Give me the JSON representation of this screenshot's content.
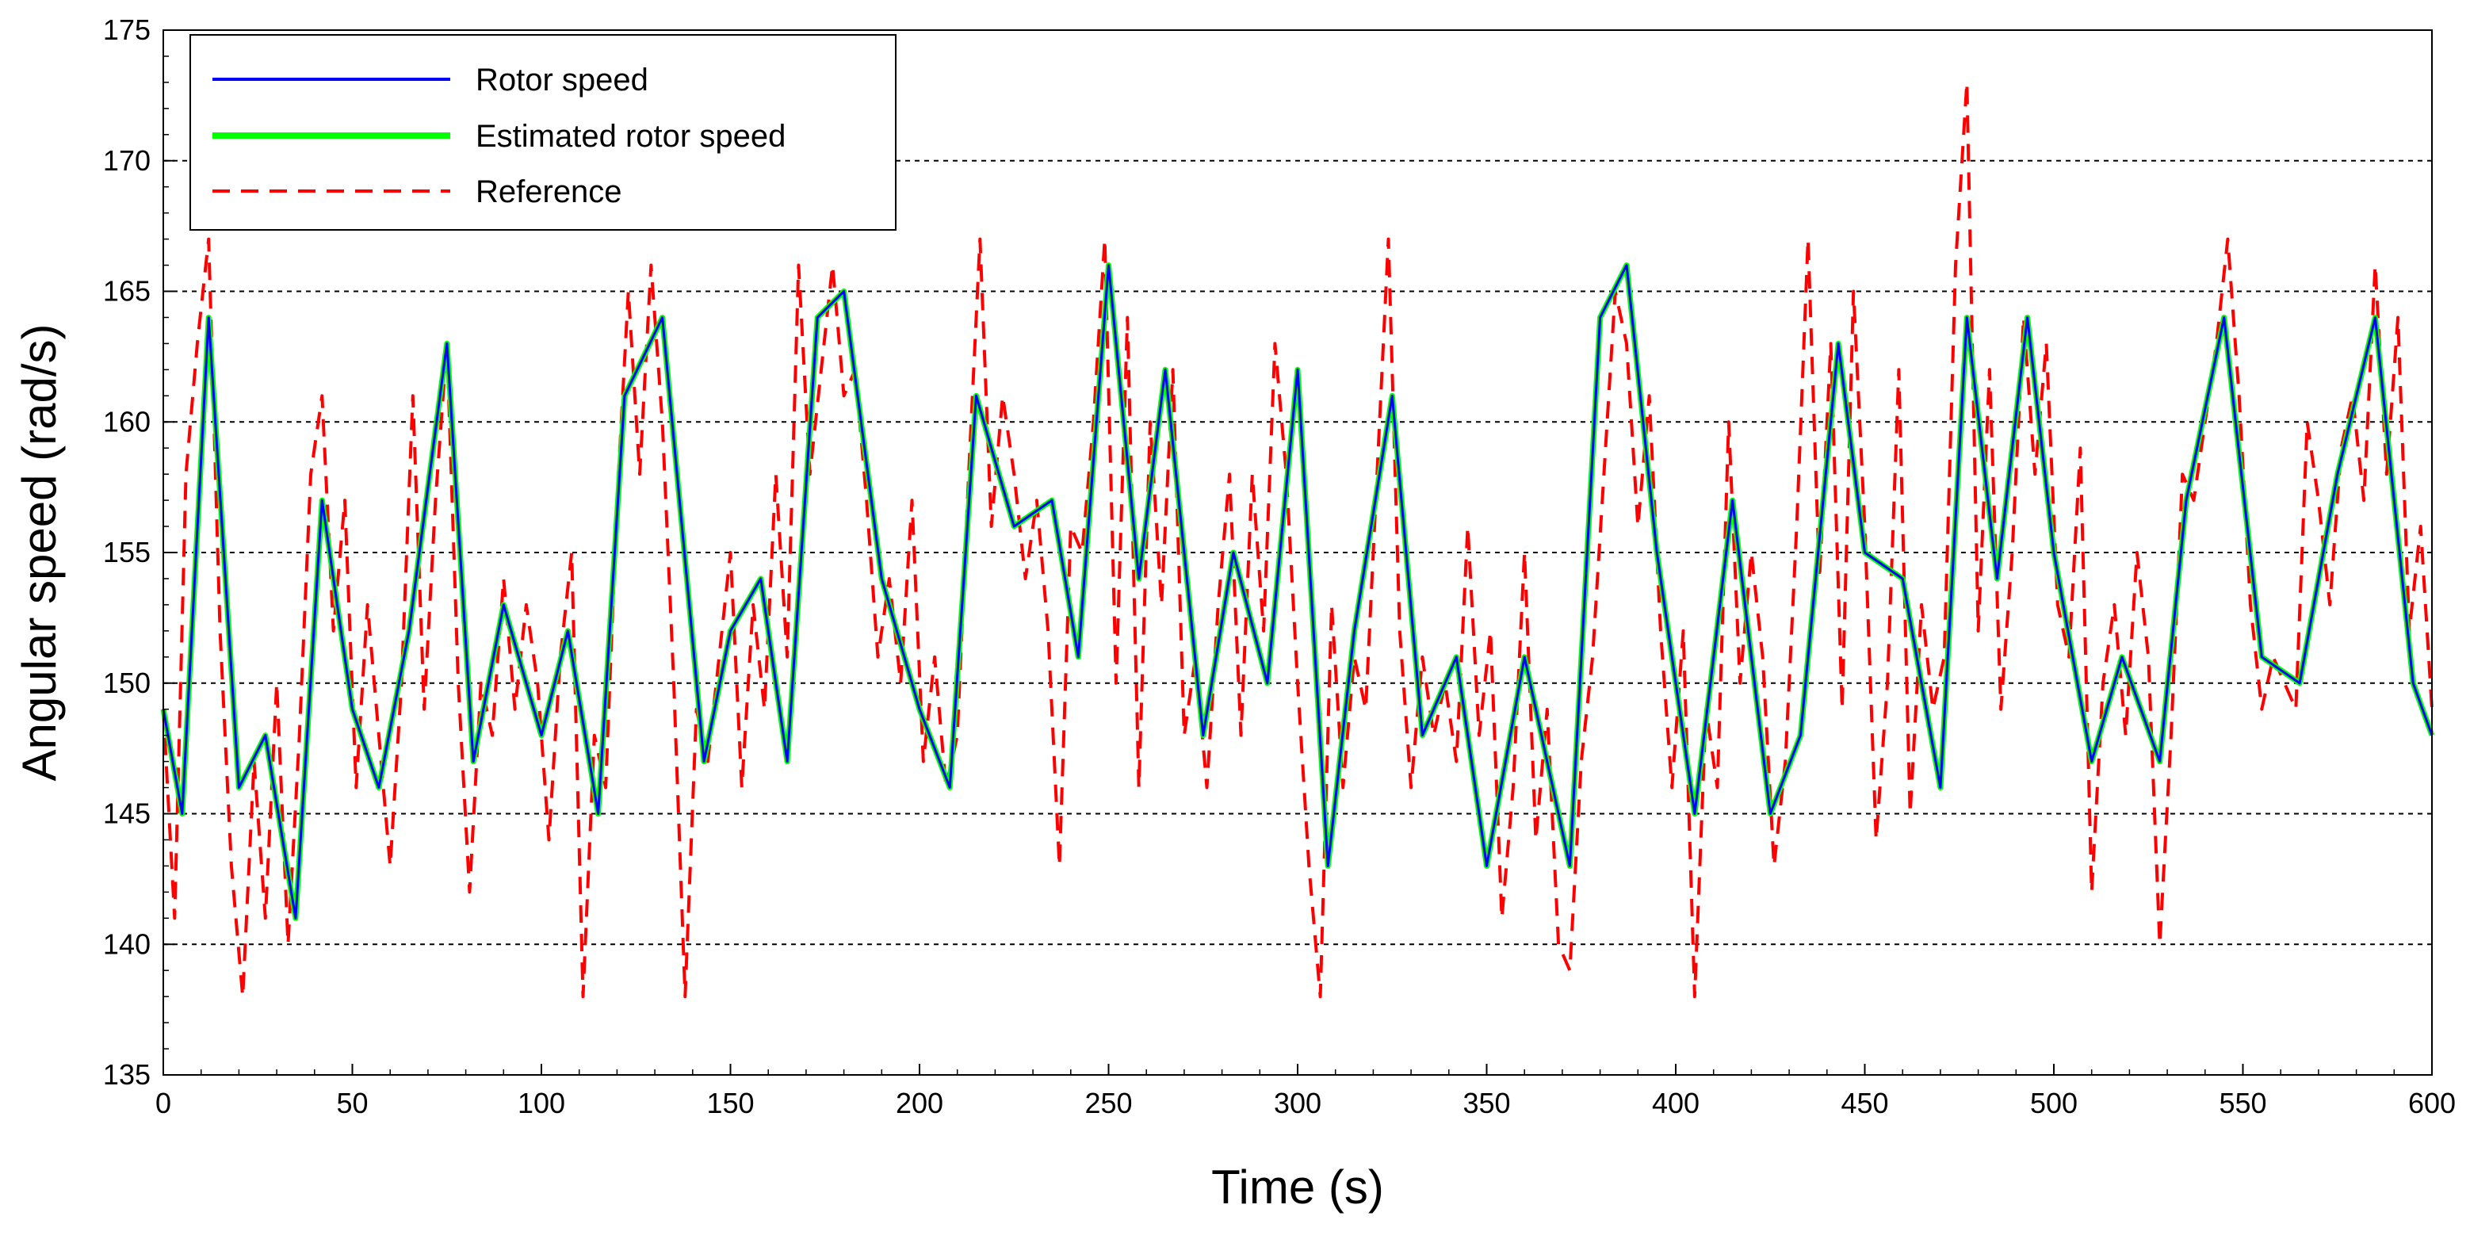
{
  "chart_data": {
    "type": "line",
    "title": "",
    "xlabel": "Time (s)",
    "ylabel": "Angular speed (rad/s)",
    "xlim": [
      0,
      600
    ],
    "ylim": [
      135,
      175
    ],
    "xticks": [
      0,
      50,
      100,
      150,
      200,
      250,
      300,
      350,
      400,
      450,
      500,
      550,
      600
    ],
    "yticks": [
      135,
      140,
      145,
      150,
      155,
      160,
      165,
      170,
      175
    ],
    "grid": "horizontal dashed",
    "legend_position": "top-left",
    "series": [
      {
        "name": "Rotor speed",
        "color": "#0000ff",
        "style": "solid",
        "x": [
          0,
          5,
          12,
          20,
          27,
          35,
          42,
          50,
          57,
          65,
          75,
          82,
          90,
          100,
          107,
          115,
          122,
          132,
          143,
          150,
          158,
          165,
          173,
          180,
          190,
          200,
          208,
          215,
          225,
          235,
          242,
          250,
          258,
          265,
          275,
          283,
          292,
          300,
          308,
          315,
          325,
          333,
          342,
          350,
          360,
          372,
          380,
          387,
          395,
          405,
          415,
          425,
          433,
          443,
          450,
          460,
          470,
          477,
          485,
          493,
          500,
          510,
          518,
          528,
          535,
          545,
          555,
          565,
          575,
          585,
          595,
          600
        ],
        "y": [
          149,
          145,
          164,
          146,
          148,
          141,
          157,
          149,
          146,
          152,
          163,
          147,
          153,
          148,
          152,
          145,
          161,
          164,
          147,
          152,
          154,
          147,
          164,
          165,
          154,
          149,
          146,
          161,
          156,
          157,
          151,
          166,
          154,
          162,
          148,
          155,
          150,
          162,
          143,
          152,
          161,
          148,
          151,
          143,
          151,
          143,
          164,
          166,
          155,
          145,
          157,
          145,
          148,
          163,
          155,
          154,
          146,
          164,
          154,
          164,
          155,
          147,
          151,
          147,
          157,
          164,
          151,
          150,
          158,
          164,
          150,
          148
        ]
      },
      {
        "name": "Estimated rotor speed",
        "color": "#00ff00",
        "style": "solid",
        "x": [
          0,
          5,
          12,
          20,
          27,
          35,
          42,
          50,
          57,
          65,
          75,
          82,
          90,
          100,
          107,
          115,
          122,
          132,
          143,
          150,
          158,
          165,
          173,
          180,
          190,
          200,
          208,
          215,
          225,
          235,
          242,
          250,
          258,
          265,
          275,
          283,
          292,
          300,
          308,
          315,
          325,
          333,
          342,
          350,
          360,
          372,
          380,
          387,
          395,
          405,
          415,
          425,
          433,
          443,
          450,
          460,
          470,
          477,
          485,
          493,
          500,
          510,
          518,
          528,
          535,
          545,
          555,
          565,
          575,
          585,
          595,
          600
        ],
        "y": [
          149,
          145,
          164,
          146,
          148,
          141,
          157,
          149,
          146,
          152,
          163,
          147,
          153,
          148,
          152,
          145,
          161,
          164,
          147,
          152,
          154,
          147,
          164,
          165,
          154,
          149,
          146,
          161,
          156,
          157,
          151,
          166,
          154,
          162,
          148,
          155,
          150,
          162,
          143,
          152,
          161,
          148,
          151,
          143,
          151,
          143,
          164,
          166,
          155,
          145,
          157,
          145,
          148,
          163,
          155,
          154,
          146,
          164,
          154,
          164,
          155,
          147,
          151,
          147,
          157,
          164,
          151,
          150,
          158,
          164,
          150,
          148
        ]
      },
      {
        "name": "Reference",
        "color": "#ff0000",
        "style": "dashed",
        "x": [
          0,
          3,
          6,
          9,
          12,
          15,
          18,
          21,
          24,
          27,
          30,
          33,
          36,
          39,
          42,
          45,
          48,
          51,
          54,
          57,
          60,
          63,
          66,
          69,
          72,
          75,
          78,
          81,
          84,
          87,
          90,
          93,
          96,
          99,
          102,
          105,
          108,
          111,
          114,
          117,
          120,
          123,
          126,
          129,
          132,
          135,
          138,
          141,
          144,
          147,
          150,
          153,
          156,
          159,
          162,
          165,
          168,
          171,
          174,
          177,
          180,
          183,
          186,
          189,
          192,
          195,
          198,
          201,
          204,
          207,
          210,
          213,
          216,
          219,
          222,
          225,
          228,
          231,
          234,
          237,
          240,
          243,
          246,
          249,
          252,
          255,
          258,
          261,
          264,
          267,
          270,
          273,
          276,
          279,
          282,
          285,
          288,
          291,
          294,
          297,
          300,
          303,
          306,
          309,
          312,
          315,
          318,
          321,
          324,
          327,
          330,
          333,
          336,
          339,
          342,
          345,
          348,
          351,
          354,
          357,
          360,
          363,
          366,
          369,
          372,
          375,
          378,
          381,
          384,
          387,
          390,
          393,
          396,
          399,
          402,
          405,
          408,
          411,
          414,
          417,
          420,
          423,
          426,
          429,
          432,
          435,
          438,
          441,
          444,
          447,
          450,
          453,
          456,
          459,
          462,
          465,
          468,
          471,
          474,
          477,
          480,
          483,
          486,
          489,
          492,
          495,
          498,
          501,
          504,
          507,
          510,
          513,
          516,
          519,
          522,
          525,
          528,
          531,
          534,
          537,
          540,
          543,
          546,
          549,
          552,
          555,
          558,
          561,
          564,
          567,
          570,
          573,
          576,
          579,
          582,
          585,
          588,
          591,
          594,
          597,
          600
        ],
        "y": [
          149,
          141,
          158,
          163,
          167,
          152,
          143,
          138,
          147,
          141,
          150,
          140,
          148,
          158,
          161,
          152,
          157,
          146,
          153,
          148,
          143,
          150,
          161,
          149,
          157,
          163,
          150,
          142,
          150,
          148,
          154,
          149,
          153,
          150,
          144,
          151,
          155,
          138,
          148,
          146,
          157,
          165,
          158,
          166,
          160,
          150,
          138,
          149,
          147,
          151,
          155,
          146,
          153,
          149,
          158,
          151,
          166,
          158,
          162,
          166,
          161,
          162,
          157,
          151,
          154,
          150,
          157,
          147,
          151,
          146,
          148,
          158,
          167,
          156,
          161,
          158,
          154,
          157,
          152,
          143,
          156,
          155,
          160,
          167,
          150,
          164,
          146,
          160,
          153,
          162,
          148,
          151,
          146,
          153,
          158,
          148,
          158,
          152,
          163,
          158,
          150,
          143,
          138,
          153,
          146,
          151,
          149,
          158,
          167,
          152,
          146,
          151,
          148,
          150,
          147,
          156,
          148,
          152,
          141,
          146,
          155,
          144,
          149,
          140,
          139,
          147,
          151,
          158,
          165,
          163,
          156,
          161,
          152,
          146,
          152,
          138,
          149,
          146,
          160,
          150,
          155,
          151,
          143,
          147,
          156,
          167,
          154,
          163,
          149,
          165,
          156,
          144,
          150,
          162,
          145,
          153,
          149,
          151,
          166,
          173,
          152,
          162,
          149,
          155,
          164,
          158,
          163,
          153,
          151,
          159,
          142,
          150,
          153,
          148,
          155,
          151,
          140,
          148,
          158,
          157,
          160,
          163,
          167,
          161,
          153,
          149,
          151,
          150,
          149,
          160,
          157,
          153,
          159,
          161,
          157,
          166,
          158,
          164,
          152,
          156,
          149
        ]
      }
    ]
  }
}
